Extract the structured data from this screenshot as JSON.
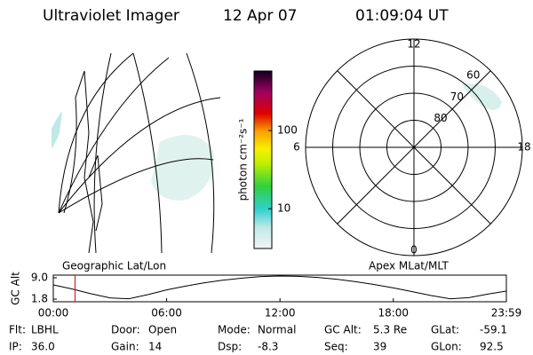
{
  "header": {
    "title": "Ultraviolet Imager",
    "date": "12 Apr 07",
    "time": "01:09:04 UT"
  },
  "map": {
    "label": "Geographic Lat/Lon"
  },
  "colorbar": {
    "label": "photon cm⁻²s⁻¹",
    "log": true,
    "clim": [
      3.1,
      577
    ],
    "ticks": [
      100,
      10
    ]
  },
  "polar": {
    "label": "Apex MLat/MLT",
    "rlim": [
      90,
      50
    ],
    "rticks": [
      80,
      70,
      60
    ],
    "hours": [
      12,
      18,
      6,
      0
    ]
  },
  "altitude": {
    "ylabel": "GC Alt",
    "ylim": [
      0.9,
      9.9
    ],
    "yticks": [
      {
        "value": 9,
        "label": "9.0"
      },
      1.8
    ],
    "xlim": [
      0,
      23.983
    ],
    "xticks": [
      {
        "value": 0,
        "label": "00:00"
      },
      {
        "value": 6,
        "label": "06:00"
      },
      {
        "value": 12,
        "label": "12:00"
      },
      {
        "value": 18,
        "label": "18:00"
      },
      {
        "value": 23.983,
        "label": "23:59"
      }
    ],
    "x": [
      0,
      1,
      2,
      3,
      4,
      5,
      6,
      7,
      8,
      9,
      10,
      11,
      12,
      13,
      14,
      15,
      16,
      17,
      18,
      19,
      20,
      21,
      22,
      23,
      23.983
    ],
    "values": [
      6.6,
      5.2,
      3.6,
      2.2,
      1.9,
      3.3,
      4.9,
      6.2,
      7.3,
      8.2,
      8.9,
      9.4,
      9.6,
      9.5,
      9.1,
      8.5,
      7.7,
      6.7,
      5.6,
      4.3,
      3.0,
      1.9,
      2.3,
      3.5,
      4.5
    ],
    "marker": 1.15,
    "marker_color": "#e00000"
  },
  "footer": {
    "rows": [
      [
        [
          "Flt:",
          "LBHL"
        ],
        [
          "Door:",
          "Open"
        ],
        [
          "Mode:",
          "Normal"
        ],
        [
          "GC Alt:",
          "5.3 Re"
        ],
        [
          "GLat:",
          "-59.1"
        ]
      ],
      [
        [
          "IP:",
          "36.0"
        ],
        [
          "Gain:",
          "14"
        ],
        [
          "Dsp:",
          "-8.3"
        ],
        [
          "Seq:",
          "39"
        ],
        [
          "GLon:",
          "92.5"
        ]
      ]
    ]
  }
}
